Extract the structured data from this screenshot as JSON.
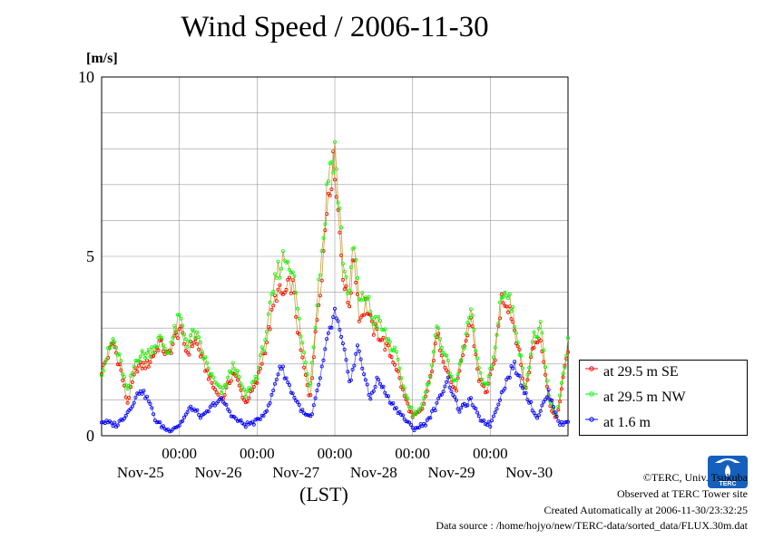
{
  "title": "Wind Speed / 2006-11-30",
  "footer": {
    "copyright": "©TERC, Univ. Tsukuba",
    "observed": "Observed at TERC Tower site",
    "created": "Created Automatically at 2006-11-30/23:32:25",
    "source": "Data source : /home/hojyo/new/TERC-data/sorted_data/FLUX.30m.dat"
  },
  "logo_text": "TERC",
  "chart_data": {
    "type": "line",
    "ylabel": "[m/s]",
    "xlabel": "(LST)",
    "ylim": [
      0,
      10
    ],
    "yticks": [
      "0",
      "5",
      "10"
    ],
    "xlim_days": [
      0,
      6
    ],
    "time_ticks": [
      "00:00",
      "00:00",
      "00:00",
      "00:00",
      "00:00"
    ],
    "day_labels": [
      "Nov-25",
      "Nov-26",
      "Nov-27",
      "Nov-28",
      "Nov-29",
      "Nov-30"
    ],
    "grid": true,
    "legend_position": "right",
    "series": [
      {
        "name": "at 29.5 m SE",
        "color": "#ff0000",
        "keypoints": [
          [
            0,
            1.8
          ],
          [
            0.15,
            2.6
          ],
          [
            0.25,
            1.8
          ],
          [
            0.33,
            0.9
          ],
          [
            0.45,
            1.9
          ],
          [
            0.6,
            2.0
          ],
          [
            0.75,
            2.6
          ],
          [
            0.85,
            2.2
          ],
          [
            1.0,
            3.0
          ],
          [
            1.1,
            2.3
          ],
          [
            1.2,
            2.7
          ],
          [
            1.35,
            1.8
          ],
          [
            1.45,
            1.3
          ],
          [
            1.55,
            1.0
          ],
          [
            1.7,
            1.8
          ],
          [
            1.85,
            0.9
          ],
          [
            2.0,
            1.5
          ],
          [
            2.12,
            2.6
          ],
          [
            2.25,
            4.0
          ],
          [
            2.35,
            3.9
          ],
          [
            2.45,
            4.3
          ],
          [
            2.55,
            2.5
          ],
          [
            2.68,
            1.0
          ],
          [
            2.78,
            3.5
          ],
          [
            2.85,
            5.0
          ],
          [
            2.92,
            7.0
          ],
          [
            3.0,
            7.6
          ],
          [
            3.05,
            6.0
          ],
          [
            3.12,
            4.2
          ],
          [
            3.18,
            3.6
          ],
          [
            3.25,
            5.0
          ],
          [
            3.32,
            3.2
          ],
          [
            3.4,
            3.7
          ],
          [
            3.48,
            3.0
          ],
          [
            3.58,
            2.8
          ],
          [
            3.68,
            2.4
          ],
          [
            3.78,
            2.0
          ],
          [
            3.88,
            1.2
          ],
          [
            4.0,
            0.5
          ],
          [
            4.12,
            0.7
          ],
          [
            4.22,
            1.5
          ],
          [
            4.32,
            2.8
          ],
          [
            4.42,
            2.0
          ],
          [
            4.55,
            1.2
          ],
          [
            4.65,
            2.2
          ],
          [
            4.75,
            3.3
          ],
          [
            4.85,
            1.6
          ],
          [
            4.95,
            1.2
          ],
          [
            5.05,
            2.0
          ],
          [
            5.15,
            3.9
          ],
          [
            5.25,
            3.6
          ],
          [
            5.35,
            2.6
          ],
          [
            5.45,
            1.2
          ],
          [
            5.55,
            2.5
          ],
          [
            5.65,
            2.8
          ],
          [
            5.75,
            1.0
          ],
          [
            5.85,
            0.4
          ],
          [
            6.0,
            2.4
          ]
        ]
      },
      {
        "name": "at 29.5 m NW",
        "color": "#00ff00",
        "keypoints": [
          [
            0,
            1.8
          ],
          [
            0.15,
            2.7
          ],
          [
            0.25,
            2.0
          ],
          [
            0.33,
            1.2
          ],
          [
            0.45,
            2.2
          ],
          [
            0.6,
            2.3
          ],
          [
            0.75,
            2.7
          ],
          [
            0.85,
            2.3
          ],
          [
            1.0,
            3.3
          ],
          [
            1.1,
            2.6
          ],
          [
            1.2,
            2.9
          ],
          [
            1.35,
            2.0
          ],
          [
            1.45,
            1.5
          ],
          [
            1.55,
            1.2
          ],
          [
            1.7,
            2.0
          ],
          [
            1.85,
            1.1
          ],
          [
            2.0,
            1.7
          ],
          [
            2.12,
            2.9
          ],
          [
            2.25,
            4.5
          ],
          [
            2.35,
            5.0
          ],
          [
            2.45,
            4.8
          ],
          [
            2.55,
            3.0
          ],
          [
            2.68,
            1.3
          ],
          [
            2.78,
            4.0
          ],
          [
            2.85,
            5.5
          ],
          [
            2.92,
            7.4
          ],
          [
            3.0,
            8.0
          ],
          [
            3.05,
            6.5
          ],
          [
            3.12,
            4.6
          ],
          [
            3.18,
            4.0
          ],
          [
            3.25,
            5.3
          ],
          [
            3.32,
            3.6
          ],
          [
            3.4,
            4.0
          ],
          [
            3.48,
            3.3
          ],
          [
            3.58,
            3.1
          ],
          [
            3.68,
            2.7
          ],
          [
            3.78,
            2.3
          ],
          [
            3.88,
            1.4
          ],
          [
            4.0,
            0.6
          ],
          [
            4.12,
            0.8
          ],
          [
            4.22,
            1.6
          ],
          [
            4.32,
            3.1
          ],
          [
            4.42,
            2.2
          ],
          [
            4.55,
            1.4
          ],
          [
            4.65,
            2.4
          ],
          [
            4.75,
            3.5
          ],
          [
            4.85,
            1.8
          ],
          [
            4.95,
            1.4
          ],
          [
            5.05,
            2.2
          ],
          [
            5.15,
            4.1
          ],
          [
            5.25,
            3.8
          ],
          [
            5.35,
            2.8
          ],
          [
            5.45,
            1.3
          ],
          [
            5.55,
            2.7
          ],
          [
            5.65,
            3.0
          ],
          [
            5.75,
            1.1
          ],
          [
            5.85,
            0.5
          ],
          [
            6.0,
            2.6
          ]
        ]
      },
      {
        "name": "at 1.6 m",
        "color": "#0000ff",
        "keypoints": [
          [
            0,
            0.4
          ],
          [
            0.2,
            0.3
          ],
          [
            0.35,
            0.7
          ],
          [
            0.5,
            1.3
          ],
          [
            0.6,
            1.0
          ],
          [
            0.7,
            0.4
          ],
          [
            0.85,
            0.15
          ],
          [
            1.0,
            0.3
          ],
          [
            1.15,
            0.8
          ],
          [
            1.3,
            0.5
          ],
          [
            1.45,
            0.9
          ],
          [
            1.55,
            1.0
          ],
          [
            1.7,
            0.5
          ],
          [
            1.85,
            0.3
          ],
          [
            2.0,
            0.4
          ],
          [
            2.15,
            0.8
          ],
          [
            2.3,
            2.0
          ],
          [
            2.45,
            1.2
          ],
          [
            2.6,
            0.6
          ],
          [
            2.7,
            0.5
          ],
          [
            2.8,
            1.5
          ],
          [
            2.92,
            2.8
          ],
          [
            3.0,
            3.4
          ],
          [
            3.1,
            2.5
          ],
          [
            3.2,
            1.5
          ],
          [
            3.3,
            2.5
          ],
          [
            3.45,
            1.0
          ],
          [
            3.55,
            1.6
          ],
          [
            3.7,
            1.0
          ],
          [
            3.85,
            0.6
          ],
          [
            4.0,
            0.2
          ],
          [
            4.15,
            0.3
          ],
          [
            4.3,
            0.8
          ],
          [
            4.45,
            1.6
          ],
          [
            4.6,
            0.7
          ],
          [
            4.75,
            1.0
          ],
          [
            4.85,
            0.5
          ],
          [
            5.0,
            0.3
          ],
          [
            5.15,
            1.2
          ],
          [
            5.3,
            2.0
          ],
          [
            5.45,
            1.2
          ],
          [
            5.6,
            0.5
          ],
          [
            5.75,
            1.2
          ],
          [
            5.9,
            0.3
          ],
          [
            6.0,
            0.4
          ]
        ]
      }
    ]
  }
}
